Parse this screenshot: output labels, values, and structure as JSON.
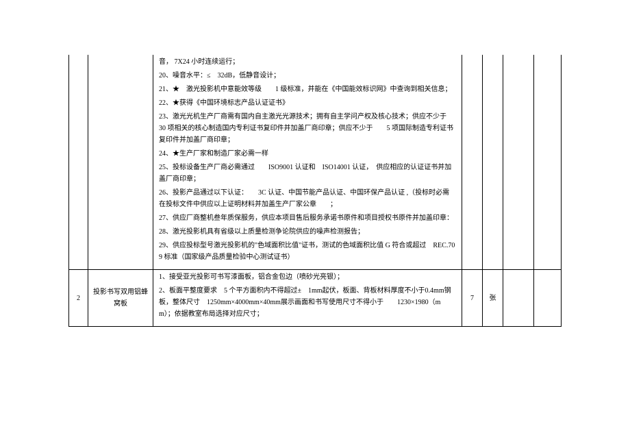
{
  "row1": {
    "specs": [
      "音， 7X24 小时连续运行；",
      "20、噪音水平：≤　32dB，低静音设计；",
      "21、★　激光投影机中意能效等级　　1 级标准，并能在《中国能效标识网》中查询到相关信息；",
      "22、★获得《中国环境标志产品认证证书》",
      "23、激光光机生产厂商需有国内自主激光光源技术；拥有自主学问产权及核心技术；供应不少于　30 项相关的核心制造国内专利证书复印件并加盖厂商印章；供应不少于　　5 项国际制造专利证书复印件并加盖厂商印章；",
      "24、★生产厂家和制造厂家必需一样",
      "25、投标设备生产厂商必需通过　　ISO9001 认证和　ISO14001 认证，　供应相应的认证证书并加盖厂商印章；",
      "26、投影产品通过以下认证：　　3C 认证、中国节能产品认证、中国环保产品认证 ,（投标时必需在投标文件中供应以上证明材料并加盖生产厂家公章　　；",
      "27、供应厂商整机叁年质保服务，供应本项目售后服务承诺书原件和项目授权书原件并加盖印章：",
      "28、激光投影机具有省级以上质量检测争论院供应的噪声检测报告；",
      "29、供应投标型号激光投影机的\"色域面积比值\"证书，测试的色域面积比值 G 符合或超过　REC.709 标准（国家级产品质量检验中心测试证书）"
    ]
  },
  "row2": {
    "index": "2",
    "name": "投影书写双用铝蜂窝板",
    "specs": [
      "1、接受亚光投影可书写漆面板，铝合金包边（喷砂光亮银）；",
      "2、板面平整度要求　5 个平方面积内不得超过±　1mm起伏，板面、背板材料厚度不小于0.4mm钢板，整体尺寸　1250mm×4000mm×40mm展示画面和书写使用尺寸不得小于　　1230×1980（mm）；依据教室布局选择对应尺寸；"
    ],
    "qty": "7",
    "unit": "张"
  }
}
